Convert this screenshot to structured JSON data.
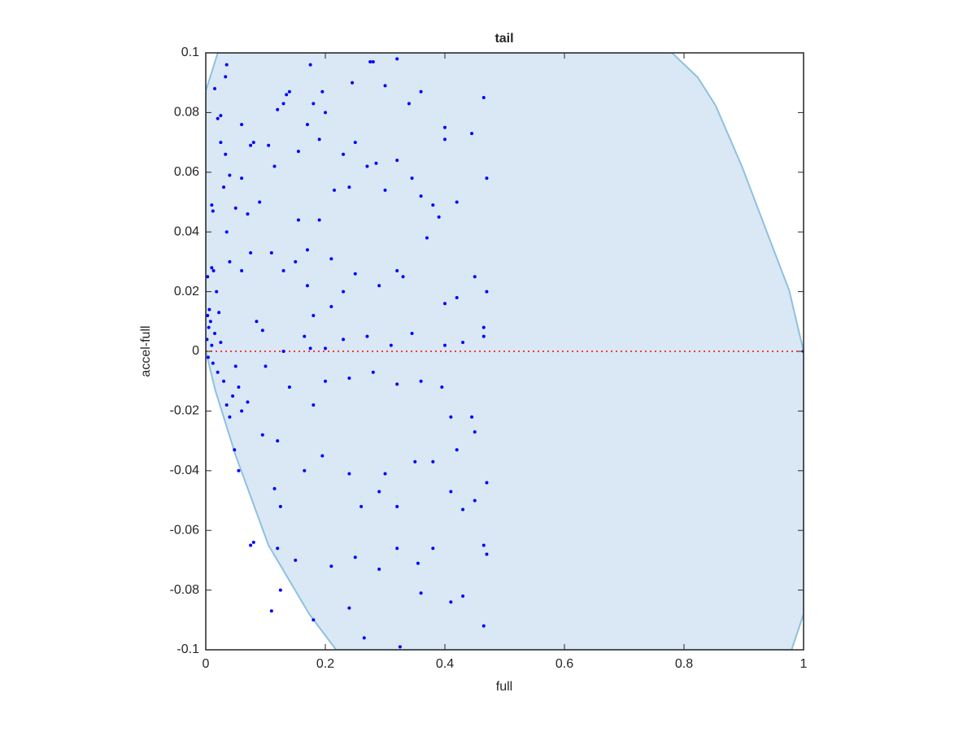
{
  "chart_data": {
    "type": "scatter",
    "title": "tail",
    "x_label": "full",
    "y_label": "accel-full",
    "xlim": [
      0,
      1
    ],
    "ylim": [
      -0.1,
      0.1
    ],
    "xticks": [
      0,
      0.2,
      0.4,
      0.6,
      0.8,
      1
    ],
    "yticks": [
      -0.1,
      -0.08,
      -0.06,
      -0.04,
      -0.02,
      0,
      0.02,
      0.04,
      0.06,
      0.08,
      0.1
    ],
    "region": {
      "color": "#d9e8f4",
      "edge_color": "#8fc0e0",
      "x": [
        0,
        0.02,
        0.78,
        0.823,
        0.853,
        0.897,
        0.941,
        0.976,
        1,
        1,
        0.98,
        0.218,
        0.173,
        0.105,
        0.05,
        0.016,
        0
      ],
      "y": [
        0.0872,
        0.1,
        0.1,
        0.0918,
        0.0823,
        0.0619,
        0.0387,
        0.0204,
        0,
        -0.088,
        -0.1,
        -0.1,
        -0.088,
        -0.065,
        -0.0349,
        -0.0131,
        0
      ]
    },
    "reference_line": {
      "color": "#ff0000",
      "x": [
        0,
        1
      ],
      "y": [
        0,
        0
      ]
    },
    "points": {
      "color": "#0000ff",
      "x": [
        0.003,
        0.005,
        0.002,
        0.008,
        0.01,
        0.004,
        0.012,
        0.015,
        0.006,
        0.003,
        0.013,
        0.018,
        0.022,
        0.025,
        0.02,
        0.03,
        0.035,
        0.04,
        0.045,
        0.05,
        0.055,
        0.06,
        0.07,
        0.048,
        0.055,
        0.075,
        0.08,
        0.11,
        0.12,
        0.125,
        0.18,
        0.24,
        0.265,
        0.325,
        0.36,
        0.41,
        0.43,
        0.465,
        0.47,
        0.465,
        0.38,
        0.355,
        0.32,
        0.29,
        0.25,
        0.21,
        0.15,
        0.115,
        0.125,
        0.165,
        0.195,
        0.24,
        0.3,
        0.29,
        0.26,
        0.32,
        0.35,
        0.38,
        0.41,
        0.43,
        0.45,
        0.47,
        0.445,
        0.45,
        0.42,
        0.41,
        0.395,
        0.36,
        0.32,
        0.28,
        0.24,
        0.2,
        0.18,
        0.14,
        0.1,
        0.12,
        0.095,
        0.085,
        0.095,
        0.13,
        0.165,
        0.175,
        0.2,
        0.23,
        0.27,
        0.31,
        0.345,
        0.4,
        0.43,
        0.465,
        0.465,
        0.42,
        0.4,
        0.45,
        0.47,
        0.39,
        0.37,
        0.33,
        0.32,
        0.29,
        0.25,
        0.23,
        0.21,
        0.18,
        0.17,
        0.15,
        0.13,
        0.11,
        0.09,
        0.07,
        0.05,
        0.03,
        0.01,
        0.012,
        0.02,
        0.025,
        0.033,
        0.04,
        0.06,
        0.075,
        0.08,
        0.105,
        0.115,
        0.12,
        0.13,
        0.14,
        0.155,
        0.17,
        0.18,
        0.19,
        0.2,
        0.215,
        0.23,
        0.24,
        0.25,
        0.27,
        0.285,
        0.3,
        0.32,
        0.345,
        0.36,
        0.38,
        0.4,
        0.42,
        0.445,
        0.47,
        0.465,
        0.4,
        0.36,
        0.34,
        0.3,
        0.28,
        0.245,
        0.195,
        0.175,
        0.135,
        0.035,
        0.033,
        0.015,
        0.025,
        0.06,
        0.275,
        0.32,
        0.21,
        0.17,
        0.19,
        0.155,
        0.075,
        0.06,
        0.04,
        0.035,
        0.01,
        1
      ],
      "y": [
        0.012,
        0.008,
        0.004,
        0.01,
        0.002,
        -0.002,
        -0.004,
        0.006,
        0.014,
        0.025,
        0.027,
        0.02,
        0.013,
        0.003,
        -0.007,
        -0.01,
        -0.018,
        -0.022,
        -0.015,
        -0.005,
        -0.012,
        -0.02,
        -0.017,
        -0.033,
        -0.04,
        -0.065,
        -0.064,
        -0.087,
        -0.066,
        -0.08,
        -0.09,
        -0.086,
        -0.096,
        -0.099,
        -0.081,
        -0.084,
        -0.082,
        -0.092,
        -0.068,
        -0.065,
        -0.066,
        -0.071,
        -0.066,
        -0.073,
        -0.069,
        -0.072,
        -0.07,
        -0.046,
        -0.052,
        -0.04,
        -0.035,
        -0.041,
        -0.041,
        -0.047,
        -0.052,
        -0.052,
        -0.037,
        -0.037,
        -0.047,
        -0.053,
        -0.05,
        -0.044,
        -0.022,
        -0.027,
        -0.033,
        -0.022,
        -0.012,
        -0.01,
        -0.011,
        -0.007,
        -0.009,
        -0.01,
        -0.018,
        -0.012,
        -0.005,
        -0.03,
        -0.028,
        0.01,
        0.007,
        0.0,
        0.005,
        0.001,
        0.001,
        0.004,
        0.005,
        0.002,
        0.006,
        0.002,
        0.003,
        0.008,
        0.005,
        0.018,
        0.016,
        0.025,
        0.02,
        0.045,
        0.038,
        0.025,
        0.027,
        0.022,
        0.026,
        0.02,
        0.015,
        0.012,
        0.022,
        0.03,
        0.027,
        0.033,
        0.05,
        0.046,
        0.048,
        0.055,
        0.049,
        0.047,
        0.078,
        0.07,
        0.066,
        0.059,
        0.058,
        0.069,
        0.07,
        0.069,
        0.062,
        0.081,
        0.083,
        0.087,
        0.067,
        0.076,
        0.083,
        0.071,
        0.08,
        0.054,
        0.066,
        0.055,
        0.07,
        0.062,
        0.063,
        0.054,
        0.064,
        0.058,
        0.052,
        0.049,
        0.071,
        0.05,
        0.073,
        0.058,
        0.085,
        0.075,
        0.087,
        0.083,
        0.089,
        0.097,
        0.09,
        0.087,
        0.096,
        0.086,
        0.096,
        0.092,
        0.088,
        0.079,
        0.076,
        0.097,
        0.098,
        0.031,
        0.034,
        0.044,
        0.044,
        0.033,
        0.027,
        0.03,
        0.04,
        0.028,
        0
      ]
    }
  }
}
